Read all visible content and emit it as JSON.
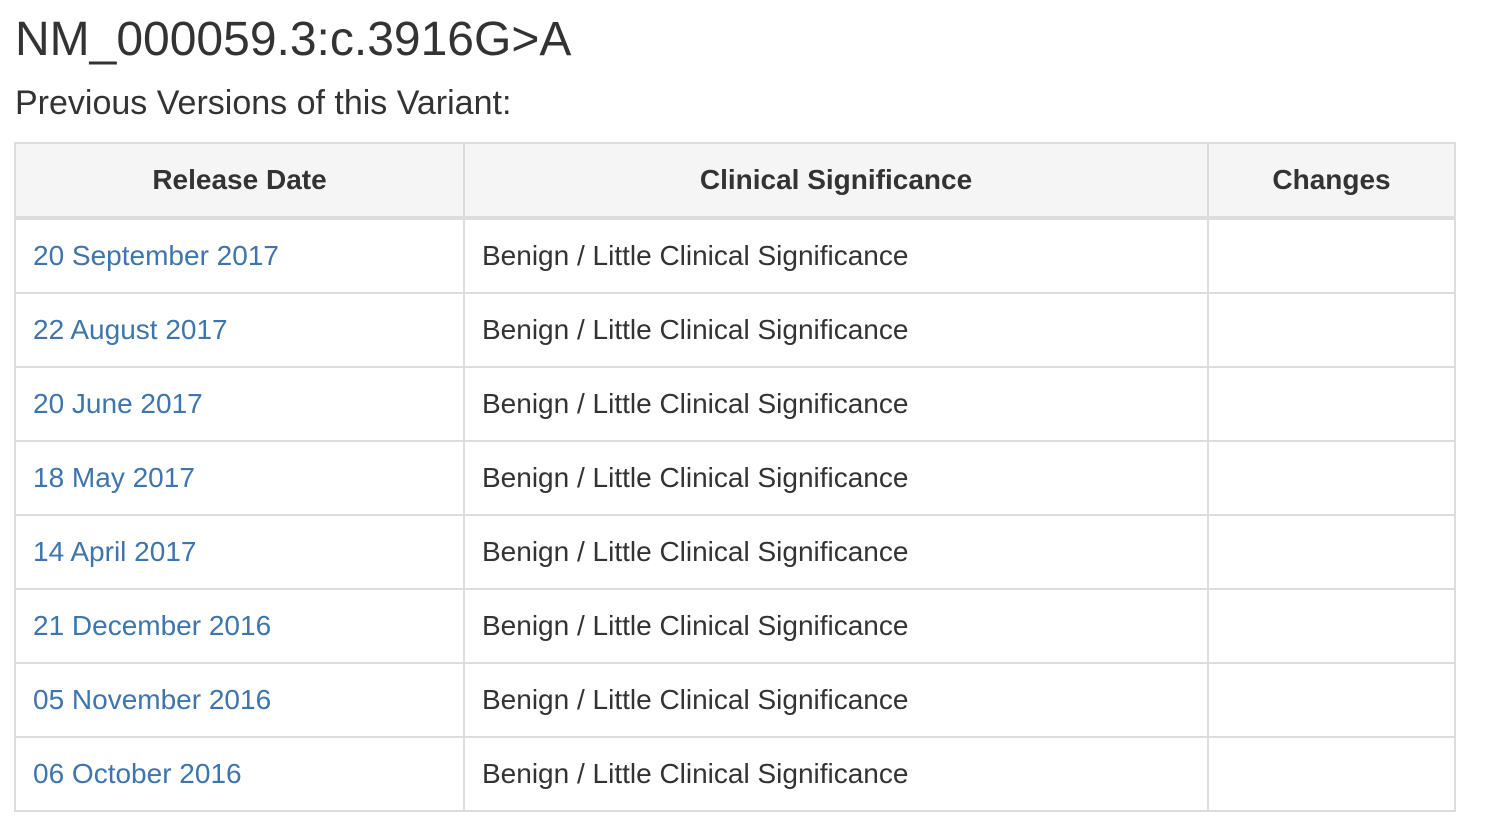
{
  "header": {
    "variant_name": "NM_000059.3:c.3916G>A",
    "section_title": "Previous Versions of this Variant:"
  },
  "table": {
    "columns": [
      "Release Date",
      "Clinical Significance",
      "Changes"
    ],
    "rows": [
      {
        "release_date": "20 September 2017",
        "clinical_significance": "Benign / Little Clinical Significance",
        "changes": ""
      },
      {
        "release_date": "22 August 2017",
        "clinical_significance": "Benign / Little Clinical Significance",
        "changes": ""
      },
      {
        "release_date": "20 June 2017",
        "clinical_significance": "Benign / Little Clinical Significance",
        "changes": ""
      },
      {
        "release_date": "18 May 2017",
        "clinical_significance": "Benign / Little Clinical Significance",
        "changes": ""
      },
      {
        "release_date": "14 April 2017",
        "clinical_significance": "Benign / Little Clinical Significance",
        "changes": ""
      },
      {
        "release_date": "21 December 2016",
        "clinical_significance": "Benign / Little Clinical Significance",
        "changes": ""
      },
      {
        "release_date": "05 November 2016",
        "clinical_significance": "Benign / Little Clinical Significance",
        "changes": ""
      },
      {
        "release_date": "06 October 2016",
        "clinical_significance": "Benign / Little Clinical Significance",
        "changes": ""
      }
    ]
  },
  "colors": {
    "link": "#3d75ac",
    "text": "#333333",
    "header_bg": "#f5f5f5",
    "border": "#dddddd"
  }
}
